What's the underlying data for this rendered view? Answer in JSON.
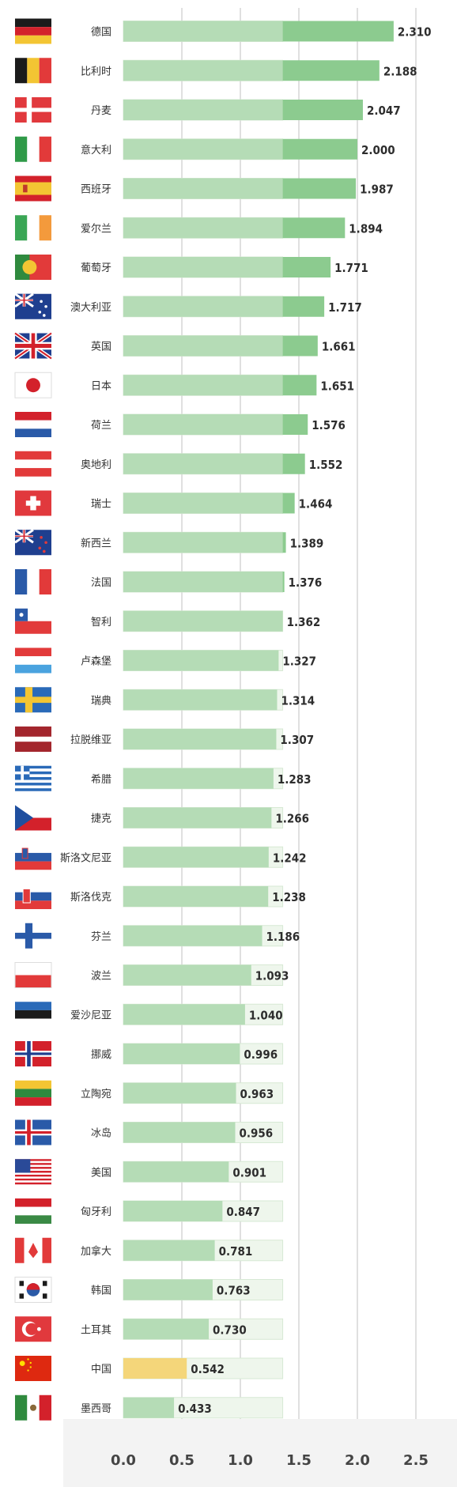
{
  "chart_data": {
    "type": "bar",
    "orientation": "horizontal",
    "categories": [
      "德国",
      "比利时",
      "丹麦",
      "意大利",
      "西班牙",
      "爱尔兰",
      "葡萄牙",
      "澳大利亚",
      "英国",
      "日本",
      "荷兰",
      "奥地利",
      "瑞士",
      "新西兰",
      "法国",
      "智利",
      "卢森堡",
      "瑞典",
      "拉脱维亚",
      "希腊",
      "捷克",
      "斯洛文尼亚",
      "斯洛伐克",
      "芬兰",
      "波兰",
      "爱沙尼亚",
      "挪威",
      "立陶宛",
      "冰岛",
      "美国",
      "匈牙利",
      "加拿大",
      "韩国",
      "土耳其",
      "中国",
      "墨西哥"
    ],
    "value_labels": [
      "2.310",
      "2.188",
      "2.047",
      "2.000",
      "1.987",
      "1.894",
      "1.771",
      "1.717",
      "1.661",
      "1.651",
      "1.576",
      "1.552",
      "1.464",
      "1.389",
      "1.376",
      "1.362",
      "1.327",
      "1.314",
      "1.307",
      "1.283",
      "1.266",
      "1.242",
      "1.238",
      "1.186",
      "1.093",
      "1.040",
      "0.996",
      "0.963",
      "0.956",
      "0.901",
      "0.847",
      "0.781",
      "0.763",
      "0.730",
      "0.542",
      "0.433"
    ],
    "values": [
      2.31,
      2.188,
      2.047,
      2.0,
      1.987,
      1.894,
      1.771,
      1.717,
      1.661,
      1.651,
      1.576,
      1.552,
      1.464,
      1.389,
      1.376,
      1.362,
      1.327,
      1.314,
      1.307,
      1.283,
      1.266,
      1.242,
      1.238,
      1.186,
      1.093,
      1.04,
      0.996,
      0.963,
      0.956,
      0.901,
      0.847,
      0.781,
      0.763,
      0.73,
      0.542,
      0.433
    ],
    "reference_value": 1.362,
    "flags": [
      "germany-flag-icon",
      "belgium-flag-icon",
      "denmark-flag-icon",
      "italy-flag-icon",
      "spain-flag-icon",
      "ireland-flag-icon",
      "portugal-flag-icon",
      "australia-flag-icon",
      "uk-flag-icon",
      "japan-flag-icon",
      "netherlands-flag-icon",
      "austria-flag-icon",
      "switzerland-flag-icon",
      "new-zealand-flag-icon",
      "france-flag-icon",
      "chile-flag-icon",
      "luxembourg-flag-icon",
      "sweden-flag-icon",
      "latvia-flag-icon",
      "greece-flag-icon",
      "czech-flag-icon",
      "slovenia-flag-icon",
      "slovakia-flag-icon",
      "finland-flag-icon",
      "poland-flag-icon",
      "estonia-flag-icon",
      "norway-flag-icon",
      "lithuania-flag-icon",
      "iceland-flag-icon",
      "usa-flag-icon",
      "hungary-flag-icon",
      "canada-flag-icon",
      "korea-flag-icon",
      "turkey-flag-icon",
      "china-flag-icon",
      "mexico-flag-icon"
    ],
    "highlight_category": "中国",
    "x_ticks": [
      "0.0",
      "0.5",
      "1.0",
      "1.5",
      "2.0",
      "2.5"
    ],
    "xlim": [
      0,
      2.5
    ],
    "grid": true,
    "colors": {
      "bar": "#b5dcb6",
      "bar_above_reference": "#8ccb8f",
      "highlight": "#f4d67a",
      "reference_box": "#eef6ec",
      "grid": "#cfcfcf",
      "background": "#ffffff",
      "axis_band": "#f3f3f3"
    }
  }
}
